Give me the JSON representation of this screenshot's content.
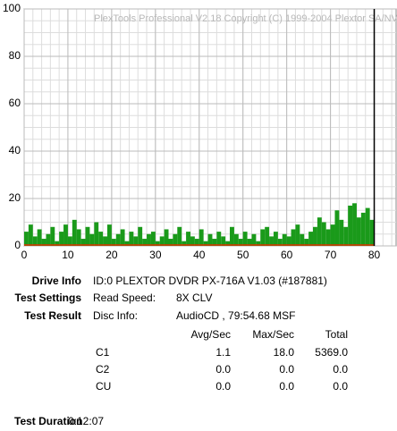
{
  "chart_data": {
    "type": "bar",
    "watermark": "PlexTools Professional V2.18 Copyright (C) 1999-2004 Plextor SA/NV",
    "x": [
      0,
      1,
      2,
      3,
      4,
      5,
      6,
      7,
      8,
      9,
      10,
      11,
      12,
      13,
      14,
      15,
      16,
      17,
      18,
      19,
      20,
      21,
      22,
      23,
      24,
      25,
      26,
      27,
      28,
      29,
      30,
      31,
      32,
      33,
      34,
      35,
      36,
      37,
      38,
      39,
      40,
      41,
      42,
      43,
      44,
      45,
      46,
      47,
      48,
      49,
      50,
      51,
      52,
      53,
      54,
      55,
      56,
      57,
      58,
      59,
      60,
      61,
      62,
      63,
      64,
      65,
      66,
      67,
      68,
      69,
      70,
      71,
      72,
      73,
      74,
      75,
      76,
      77,
      78,
      79
    ],
    "values": [
      6,
      9,
      4,
      7,
      3,
      5,
      8,
      2,
      6,
      9,
      4,
      11,
      7,
      3,
      8,
      5,
      10,
      6,
      4,
      9,
      3,
      5,
      7,
      2,
      6,
      4,
      8,
      3,
      5,
      6,
      2,
      4,
      7,
      3,
      5,
      8,
      2,
      6,
      4,
      3,
      7,
      2,
      5,
      3,
      6,
      4,
      2,
      8,
      5,
      3,
      6,
      3,
      5,
      2,
      7,
      8,
      4,
      6,
      3,
      5,
      4,
      7,
      9,
      5,
      3,
      6,
      8,
      12,
      10,
      7,
      9,
      15,
      11,
      8,
      17,
      18,
      12,
      14,
      16,
      11
    ],
    "color": "#1a9a1a",
    "xlim": [
      0,
      85
    ],
    "ylim": [
      0,
      100
    ],
    "xticks": [
      0,
      10,
      20,
      30,
      40,
      50,
      60,
      70,
      80
    ],
    "yticks": [
      0,
      20,
      40,
      60,
      80,
      100
    ],
    "grid": true
  },
  "info": {
    "drive_info": {
      "label": "Drive Info",
      "value": "ID:0 PLEXTOR DVDR PX-716A V1.03 (#187881)"
    },
    "test_settings": {
      "label": "Test Settings",
      "key": "Read Speed:",
      "value": "8X CLV"
    },
    "test_result": {
      "label": "Test Result",
      "key": "Disc Info:",
      "value": "AudioCD , 79:54.68 MSF"
    },
    "table": {
      "header": [
        "Avg/Sec",
        "Max/Sec",
        "Total"
      ],
      "rows": [
        [
          "C1",
          "1.1",
          "18.0",
          "5369.0"
        ],
        [
          "C2",
          "0.0",
          "0.0",
          "0.0"
        ],
        [
          "CU",
          "0.0",
          "0.0",
          "0.0"
        ]
      ]
    },
    "test_duration": {
      "label": "Test Duration",
      "value": "0:12:07"
    }
  }
}
